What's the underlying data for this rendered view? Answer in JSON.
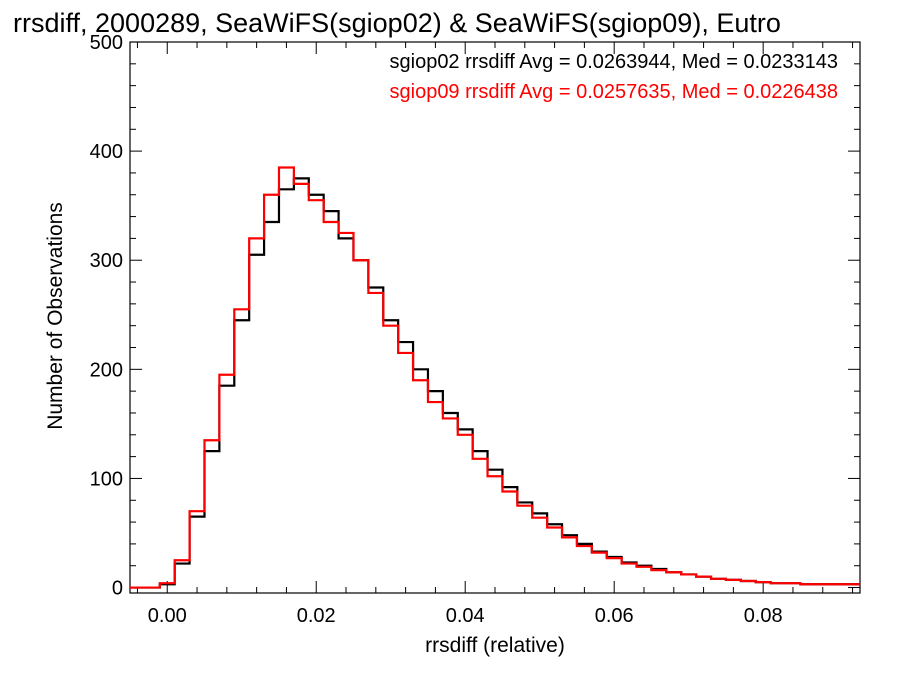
{
  "chart_data": {
    "type": "histogram",
    "title": "rrsdiff, 2000289, SeaWiFS(sgiop02) & SeaWiFS(sgiop09), Eutro",
    "xlabel": "rrsdiff (relative)",
    "ylabel": "Number of Observations",
    "xlim": [
      -0.005,
      0.093
    ],
    "ylim": [
      -5,
      500
    ],
    "xticks": [
      0.0,
      0.02,
      0.04,
      0.06,
      0.08
    ],
    "xtick_labels": [
      "0.00",
      "0.02",
      "0.04",
      "0.06",
      "0.08"
    ],
    "yticks": [
      0,
      100,
      200,
      300,
      400,
      500
    ],
    "ytick_labels": [
      "0",
      "100",
      "200",
      "300",
      "400",
      "500"
    ],
    "grid": false,
    "legend_position": "top-right",
    "series": [
      {
        "name": "sgiop02",
        "color": "#000000",
        "stats_label": "sgiop02 rrsdiff Avg = 0.0263944, Med = 0.0233143",
        "x": [
          -0.004,
          -0.002,
          0.0,
          0.002,
          0.004,
          0.006,
          0.008,
          0.01,
          0.012,
          0.014,
          0.016,
          0.018,
          0.02,
          0.022,
          0.024,
          0.026,
          0.028,
          0.03,
          0.032,
          0.034,
          0.036,
          0.038,
          0.04,
          0.042,
          0.044,
          0.046,
          0.048,
          0.05,
          0.052,
          0.054,
          0.056,
          0.058,
          0.06,
          0.062,
          0.064,
          0.066,
          0.068,
          0.07,
          0.072,
          0.074,
          0.076,
          0.078,
          0.08,
          0.082,
          0.084,
          0.086,
          0.088,
          0.09,
          0.092
        ],
        "values": [
          0,
          0,
          3,
          22,
          65,
          125,
          185,
          245,
          305,
          335,
          365,
          375,
          360,
          345,
          320,
          300,
          275,
          245,
          225,
          200,
          180,
          160,
          145,
          125,
          108,
          92,
          78,
          68,
          58,
          48,
          40,
          33,
          28,
          23,
          20,
          17,
          14,
          12,
          10,
          8,
          7,
          6,
          5,
          4,
          4,
          3,
          3,
          3,
          3
        ]
      },
      {
        "name": "sgiop09",
        "color": "#ff0000",
        "stats_label": "sgiop09 rrsdiff Avg = 0.0257635, Med = 0.0226438",
        "x": [
          -0.004,
          -0.002,
          0.0,
          0.002,
          0.004,
          0.006,
          0.008,
          0.01,
          0.012,
          0.014,
          0.016,
          0.018,
          0.02,
          0.022,
          0.024,
          0.026,
          0.028,
          0.03,
          0.032,
          0.034,
          0.036,
          0.038,
          0.04,
          0.042,
          0.044,
          0.046,
          0.048,
          0.05,
          0.052,
          0.054,
          0.056,
          0.058,
          0.06,
          0.062,
          0.064,
          0.066,
          0.068,
          0.07,
          0.072,
          0.074,
          0.076,
          0.078,
          0.08,
          0.082,
          0.084,
          0.086,
          0.088,
          0.09,
          0.092
        ],
        "values": [
          0,
          0,
          4,
          25,
          70,
          135,
          195,
          255,
          320,
          360,
          385,
          370,
          355,
          335,
          325,
          300,
          270,
          240,
          215,
          190,
          170,
          155,
          140,
          118,
          102,
          88,
          75,
          64,
          55,
          46,
          38,
          32,
          27,
          22,
          19,
          16,
          14,
          12,
          10,
          8,
          7,
          6,
          5,
          4,
          4,
          3,
          3,
          3,
          3
        ]
      }
    ]
  }
}
